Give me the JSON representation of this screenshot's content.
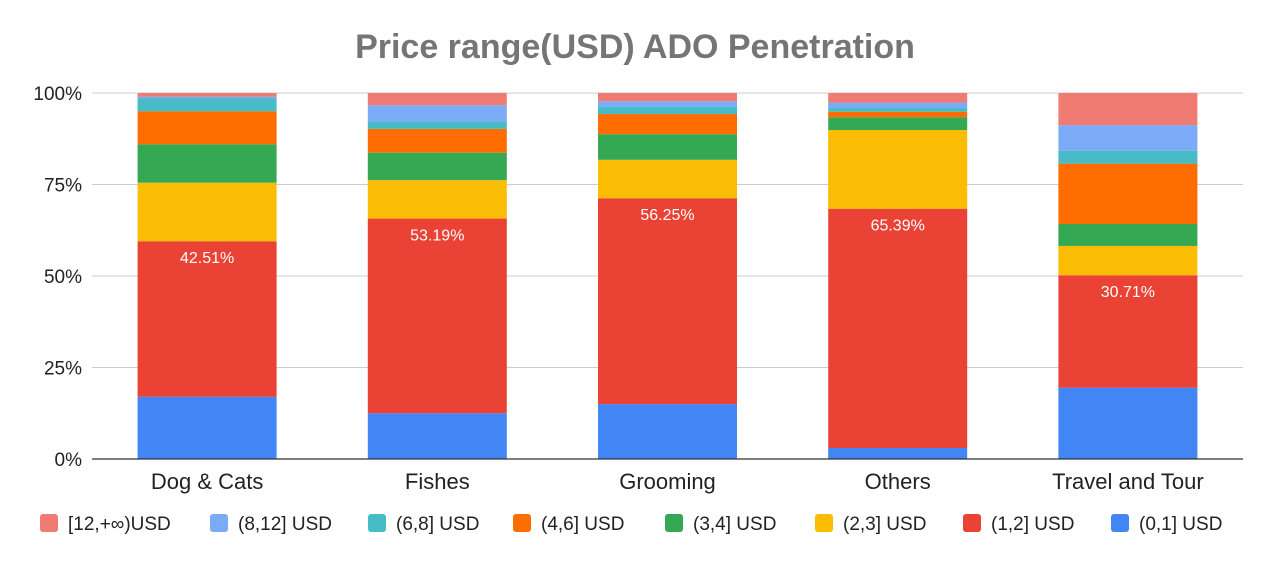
{
  "chart_data": {
    "type": "bar",
    "stacked": "percent",
    "title": "Price range(USD) ADO Penetration",
    "xlabel": "",
    "ylabel": "",
    "ylim": [
      0,
      100
    ],
    "yticks": [
      "0%",
      "25%",
      "50%",
      "75%",
      "100%"
    ],
    "categories": [
      "Dog & Cats",
      "Fishes",
      "Grooming",
      "Others",
      "Travel and Tour"
    ],
    "legend_position": "bottom",
    "grid": true,
    "series": [
      {
        "name": "(0,1] USD",
        "color": "#4285F4",
        "values": [
          17,
          12.5,
          15,
          3,
          19.5
        ]
      },
      {
        "name": "(1,2] USD",
        "color": "#EA4335",
        "values": [
          42.51,
          53.19,
          56.25,
          65.39,
          30.71
        ]
      },
      {
        "name": "(2,3] USD",
        "color": "#FBBC04",
        "values": [
          16,
          10.5,
          10.5,
          21.5,
          8
        ]
      },
      {
        "name": "(3,4] USD",
        "color": "#34A853",
        "values": [
          10.5,
          7.5,
          7,
          3.5,
          6
        ]
      },
      {
        "name": "(4,6] USD",
        "color": "#FF6D01",
        "values": [
          9,
          6.5,
          5.5,
          1.5,
          16.5
        ]
      },
      {
        "name": "(6,8] USD",
        "color": "#46BDC6",
        "values": [
          3.5,
          2,
          2,
          1,
          3.5
        ]
      },
      {
        "name": "(8,12] USD",
        "color": "#7BAAF7",
        "values": [
          0.5,
          4.5,
          1.5,
          1.5,
          7
        ]
      },
      {
        "name": "[12,+∞)USD",
        "color": "#F07B72",
        "values": [
          1,
          3.31,
          2.25,
          2.61,
          8.79
        ]
      }
    ],
    "data_labels": {
      "series": "(1,2] USD",
      "texts": [
        "42.51%",
        "53.19%",
        "56.25%",
        "65.39%",
        "30.71%"
      ]
    },
    "legend_order": [
      "[12,+∞)USD",
      "(8,12] USD",
      "(6,8] USD",
      "(4,6] USD",
      "(3,4] USD",
      "(2,3] USD",
      "(1,2] USD",
      "(0,1] USD"
    ]
  }
}
